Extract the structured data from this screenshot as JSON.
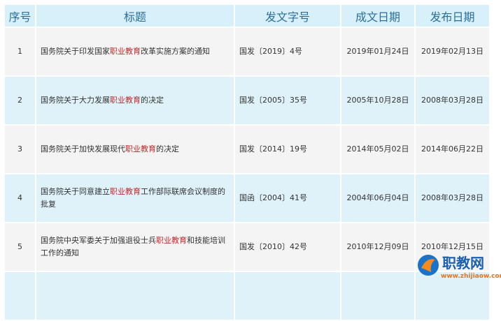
{
  "headers": [
    "序号",
    "标题",
    "发文字号",
    "成文日期",
    "发布日期"
  ],
  "rows": [
    {
      "no": "1",
      "title_pre": "国务院关于印发国家",
      "title_hl": "职业教育",
      "title_post": "改革实施方案的通知",
      "doc_no": "国发〔2019〕4号",
      "written": "2019年01月24日",
      "published": "2019年02月13日"
    },
    {
      "no": "2",
      "title_pre": "国务院关于大力发展",
      "title_hl": "职业教育",
      "title_post": "的决定",
      "doc_no": "国发〔2005〕35号",
      "written": "2005年10月28日",
      "published": "2008年03月28日"
    },
    {
      "no": "3",
      "title_pre": "国务院关于加快发展现代",
      "title_hl": "职业教育",
      "title_post": "的决定",
      "doc_no": "国发〔2014〕19号",
      "written": "2014年05月02日",
      "published": "2014年06月22日"
    },
    {
      "no": "4",
      "title_pre": "国务院关于同意建立",
      "title_hl": "职业教育",
      "title_post": "工作部际联席会议制度的批复",
      "doc_no": "国函〔2004〕41号",
      "written": "2004年06月04日",
      "published": "2008年03月28日"
    },
    {
      "no": "5",
      "title_pre": "国务院中央军委关于加强退役士兵",
      "title_hl": "职业教育",
      "title_post": "和技能培训工作的通知",
      "doc_no": "国发〔2010〕42号",
      "written": "2010年12月09日",
      "published": "2010年12月15日"
    }
  ],
  "watermark": {
    "text": "职教网",
    "url_text": "www.zhijiaow.com"
  },
  "colors": {
    "header_bg": "#d8f0f9",
    "header_text": "#2a6f9c",
    "highlight": "#c0282b",
    "row_odd": "#f4f4f4",
    "row_even": "#dff2fa"
  }
}
